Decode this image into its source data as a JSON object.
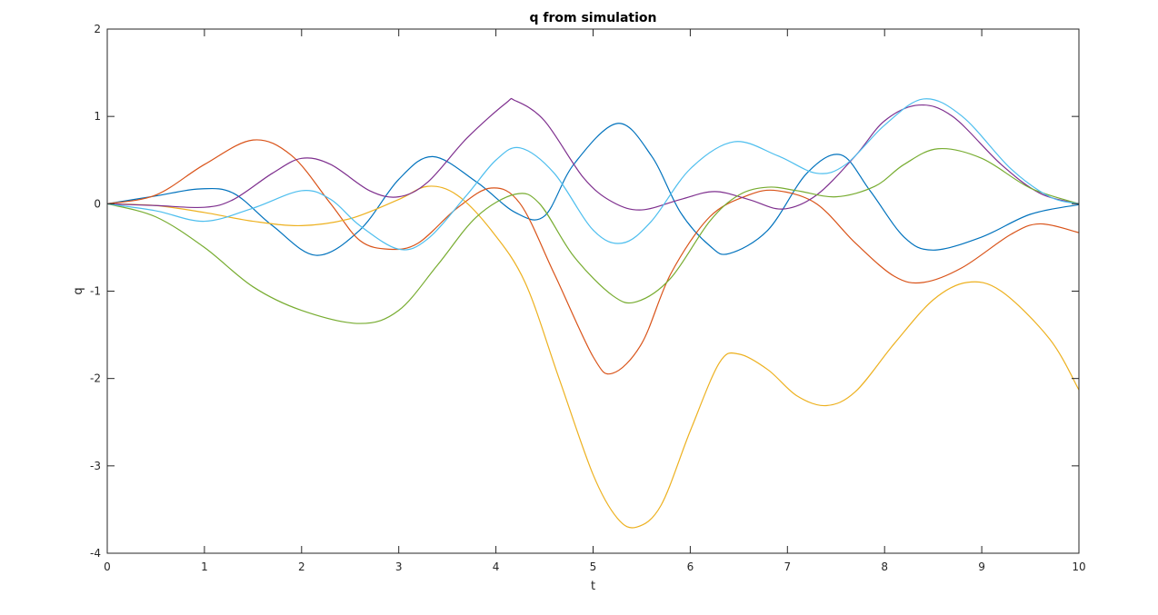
{
  "chart_data": {
    "type": "line",
    "title": "q from simulation",
    "xlabel": "t",
    "ylabel": "q",
    "xlim": [
      0,
      10
    ],
    "ylim": [
      -4,
      2
    ],
    "xticks": [
      0,
      1,
      2,
      3,
      4,
      5,
      6,
      7,
      8,
      9,
      10
    ],
    "yticks": [
      -4,
      -3,
      -2,
      -1,
      0,
      1,
      2
    ],
    "xtick_labels": [
      "0",
      "1",
      "2",
      "3",
      "4",
      "5",
      "6",
      "7",
      "8",
      "9",
      "10"
    ],
    "ytick_labels": [
      "-4",
      "-3",
      "-2",
      "-1",
      "0",
      "1",
      "2"
    ],
    "grid": false,
    "legend": "none",
    "series": [
      {
        "color": "#0072bd",
        "points": [
          [
            0,
            0
          ],
          [
            0.5,
            0.09
          ],
          [
            0.95,
            0.17
          ],
          [
            1.3,
            0.12
          ],
          [
            1.7,
            -0.25
          ],
          [
            2.15,
            -0.59
          ],
          [
            2.6,
            -0.3
          ],
          [
            3.0,
            0.28
          ],
          [
            3.35,
            0.54
          ],
          [
            3.8,
            0.25
          ],
          [
            4.2,
            -0.1
          ],
          [
            4.5,
            -0.14
          ],
          [
            4.8,
            0.45
          ],
          [
            5.25,
            0.92
          ],
          [
            5.6,
            0.55
          ],
          [
            5.9,
            -0.1
          ],
          [
            6.2,
            -0.48
          ],
          [
            6.4,
            -0.57
          ],
          [
            6.8,
            -0.3
          ],
          [
            7.2,
            0.35
          ],
          [
            7.55,
            0.56
          ],
          [
            7.85,
            0.15
          ],
          [
            8.2,
            -0.38
          ],
          [
            8.5,
            -0.53
          ],
          [
            9.0,
            -0.38
          ],
          [
            9.5,
            -0.12
          ],
          [
            10,
            -0.01
          ]
        ]
      },
      {
        "color": "#d95319",
        "points": [
          [
            0,
            0
          ],
          [
            0.5,
            0.1
          ],
          [
            1.0,
            0.45
          ],
          [
            1.5,
            0.73
          ],
          [
            1.9,
            0.55
          ],
          [
            2.3,
            0.0
          ],
          [
            2.6,
            -0.42
          ],
          [
            2.9,
            -0.52
          ],
          [
            3.2,
            -0.45
          ],
          [
            3.6,
            -0.05
          ],
          [
            3.95,
            0.18
          ],
          [
            4.25,
            0.0
          ],
          [
            4.6,
            -0.8
          ],
          [
            5.0,
            -1.75
          ],
          [
            5.2,
            -1.94
          ],
          [
            5.5,
            -1.6
          ],
          [
            5.8,
            -0.8
          ],
          [
            6.2,
            -0.15
          ],
          [
            6.6,
            0.1
          ],
          [
            6.9,
            0.15
          ],
          [
            7.3,
            0.0
          ],
          [
            7.7,
            -0.45
          ],
          [
            8.1,
            -0.83
          ],
          [
            8.4,
            -0.9
          ],
          [
            8.8,
            -0.73
          ],
          [
            9.3,
            -0.35
          ],
          [
            9.6,
            -0.23
          ],
          [
            10,
            -0.33
          ]
        ]
      },
      {
        "color": "#edb120",
        "points": [
          [
            0,
            0
          ],
          [
            0.5,
            -0.02
          ],
          [
            1.0,
            -0.1
          ],
          [
            1.5,
            -0.2
          ],
          [
            2.0,
            -0.25
          ],
          [
            2.5,
            -0.17
          ],
          [
            3.0,
            0.05
          ],
          [
            3.3,
            0.2
          ],
          [
            3.6,
            0.1
          ],
          [
            3.95,
            -0.3
          ],
          [
            4.3,
            -0.9
          ],
          [
            4.65,
            -2.0
          ],
          [
            5.0,
            -3.1
          ],
          [
            5.25,
            -3.6
          ],
          [
            5.45,
            -3.7
          ],
          [
            5.7,
            -3.45
          ],
          [
            6.0,
            -2.6
          ],
          [
            6.3,
            -1.82
          ],
          [
            6.5,
            -1.72
          ],
          [
            6.8,
            -1.9
          ],
          [
            7.1,
            -2.2
          ],
          [
            7.4,
            -2.31
          ],
          [
            7.7,
            -2.15
          ],
          [
            8.1,
            -1.6
          ],
          [
            8.5,
            -1.1
          ],
          [
            8.85,
            -0.9
          ],
          [
            9.2,
            -1.0
          ],
          [
            9.7,
            -1.55
          ],
          [
            10,
            -2.13
          ]
        ]
      },
      {
        "color": "#7e2f8e",
        "points": [
          [
            0,
            0
          ],
          [
            0.5,
            -0.02
          ],
          [
            1.0,
            -0.04
          ],
          [
            1.3,
            0.05
          ],
          [
            1.7,
            0.35
          ],
          [
            2.0,
            0.52
          ],
          [
            2.3,
            0.45
          ],
          [
            2.7,
            0.15
          ],
          [
            3.0,
            0.08
          ],
          [
            3.3,
            0.25
          ],
          [
            3.7,
            0.75
          ],
          [
            4.1,
            1.15
          ],
          [
            4.2,
            1.18
          ],
          [
            4.5,
            0.95
          ],
          [
            4.9,
            0.3
          ],
          [
            5.2,
            0.02
          ],
          [
            5.5,
            -0.07
          ],
          [
            5.9,
            0.05
          ],
          [
            6.25,
            0.14
          ],
          [
            6.6,
            0.05
          ],
          [
            6.95,
            -0.06
          ],
          [
            7.3,
            0.1
          ],
          [
            7.7,
            0.55
          ],
          [
            8.0,
            0.95
          ],
          [
            8.35,
            1.13
          ],
          [
            8.7,
            1.0
          ],
          [
            9.2,
            0.45
          ],
          [
            9.6,
            0.12
          ],
          [
            10,
            0.0
          ]
        ]
      },
      {
        "color": "#77ac30",
        "points": [
          [
            0,
            0
          ],
          [
            0.5,
            -0.15
          ],
          [
            1.0,
            -0.5
          ],
          [
            1.5,
            -0.95
          ],
          [
            2.0,
            -1.22
          ],
          [
            2.6,
            -1.37
          ],
          [
            3.0,
            -1.22
          ],
          [
            3.4,
            -0.7
          ],
          [
            3.8,
            -0.15
          ],
          [
            4.2,
            0.11
          ],
          [
            4.45,
            0.0
          ],
          [
            4.8,
            -0.6
          ],
          [
            5.2,
            -1.05
          ],
          [
            5.45,
            -1.12
          ],
          [
            5.8,
            -0.85
          ],
          [
            6.2,
            -0.2
          ],
          [
            6.5,
            0.1
          ],
          [
            6.8,
            0.19
          ],
          [
            7.1,
            0.15
          ],
          [
            7.5,
            0.08
          ],
          [
            7.9,
            0.2
          ],
          [
            8.2,
            0.45
          ],
          [
            8.55,
            0.63
          ],
          [
            9.0,
            0.52
          ],
          [
            9.5,
            0.18
          ],
          [
            10,
            0.0
          ]
        ]
      },
      {
        "color": "#4dbeee",
        "points": [
          [
            0,
            0
          ],
          [
            0.5,
            -0.08
          ],
          [
            1.0,
            -0.2
          ],
          [
            1.5,
            -0.05
          ],
          [
            2.0,
            0.15
          ],
          [
            2.3,
            0.05
          ],
          [
            2.6,
            -0.25
          ],
          [
            3.0,
            -0.52
          ],
          [
            3.3,
            -0.4
          ],
          [
            3.7,
            0.1
          ],
          [
            4.0,
            0.5
          ],
          [
            4.25,
            0.64
          ],
          [
            4.6,
            0.35
          ],
          [
            5.0,
            -0.3
          ],
          [
            5.3,
            -0.45
          ],
          [
            5.6,
            -0.2
          ],
          [
            6.0,
            0.4
          ],
          [
            6.45,
            0.71
          ],
          [
            6.9,
            0.55
          ],
          [
            7.3,
            0.35
          ],
          [
            7.6,
            0.45
          ],
          [
            8.0,
            0.9
          ],
          [
            8.4,
            1.2
          ],
          [
            8.8,
            1.0
          ],
          [
            9.3,
            0.4
          ],
          [
            9.7,
            0.08
          ],
          [
            10,
            0.0
          ]
        ]
      }
    ]
  }
}
